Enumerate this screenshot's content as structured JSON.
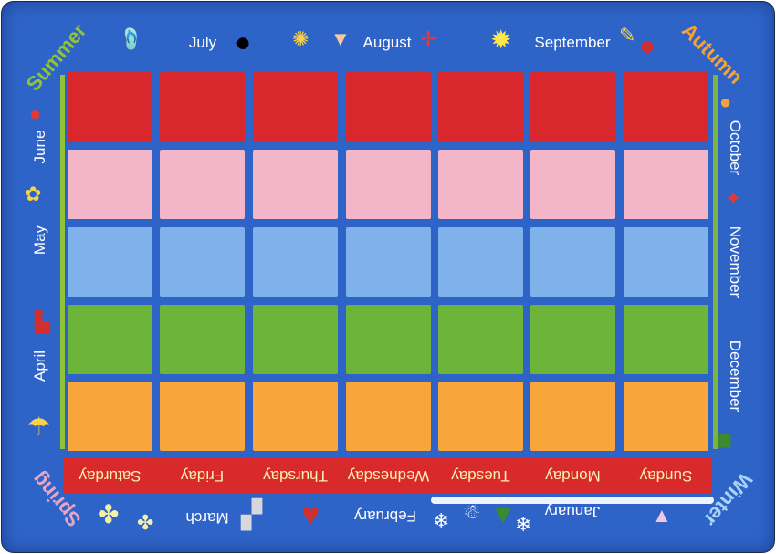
{
  "rug": {
    "days": [
      "Sunday",
      "Monday",
      "Tuesday",
      "Wednesday",
      "Thursday",
      "Friday",
      "Saturday"
    ],
    "months_top": [
      "July",
      "August",
      "September"
    ],
    "months_right": [
      "October",
      "November",
      "December"
    ],
    "months_bottom": [
      "January",
      "February",
      "March"
    ],
    "months_left": [
      "April",
      "May",
      "June"
    ],
    "seasons": {
      "summer": "Summer",
      "autumn": "Autumn",
      "winter": "Winter",
      "spring": "Spring"
    },
    "row_colors": [
      "#d8272d",
      "#f3b6c9",
      "#7fb2ea",
      "#6db43a",
      "#f8a53c"
    ],
    "colors": {
      "background": "#2e63c8",
      "day_band": "#d82a2a",
      "day_text": "#fbf0b0",
      "summer": "#8fc33a",
      "autumn": "#f5a23a",
      "winter": "#a9d4f5",
      "spring": "#e9a4c4"
    },
    "icons": [
      "flip-flops-icon",
      "beach-ball-icon",
      "fireworks-icon",
      "ice-cream-icon",
      "pinwheel-icon",
      "sun-icon",
      "pencil-icon",
      "apple-icon",
      "ladybug-icon",
      "flower-icon",
      "rain-boots-icon",
      "umbrella-icon",
      "leaf-icon",
      "gift-icon",
      "shamrock-icon",
      "bunny-icon",
      "heart-icon",
      "snowflake-icon",
      "snowman-icon",
      "tree-icon",
      "party-hat-icon"
    ]
  }
}
